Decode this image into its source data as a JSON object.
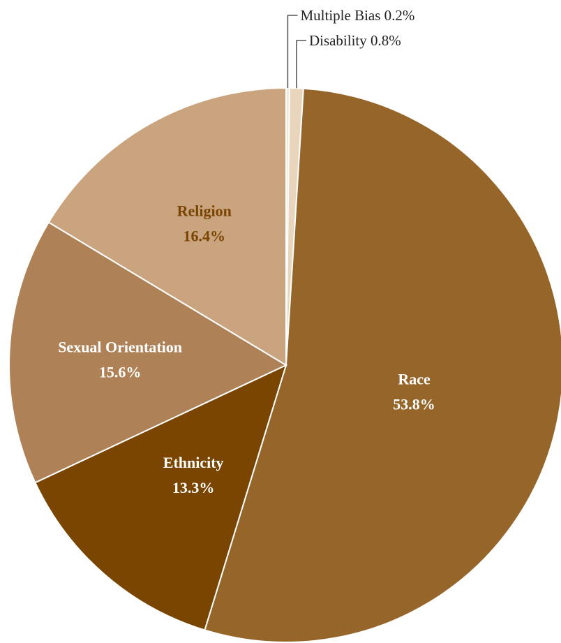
{
  "chart_data": {
    "type": "pie",
    "title": "",
    "slices": [
      {
        "label": "Multiple Bias",
        "value": 0.2,
        "value_label": "0.2%",
        "color": "#f2e6d4",
        "label_style": "callout",
        "label_color": "#222222"
      },
      {
        "label": "Disability",
        "value": 0.8,
        "value_label": "0.8%",
        "color": "#e8d5bb",
        "label_style": "callout",
        "label_color": "#222222"
      },
      {
        "label": "Race",
        "value": 53.8,
        "value_label": "53.8%",
        "color": "#95652a",
        "label_style": "inside",
        "label_color": "#ffffff"
      },
      {
        "label": "Ethnicity",
        "value": 13.3,
        "value_label": "13.3%",
        "color": "#7a4500",
        "label_style": "inside",
        "label_color": "#ffffff"
      },
      {
        "label": "Sexual Orientation",
        "value": 15.6,
        "value_label": "15.6%",
        "color": "#ae8256",
        "label_style": "inside",
        "label_color": "#ffffff"
      },
      {
        "label": "Religion",
        "value": 16.4,
        "value_label": "16.4%",
        "color": "#c9a47f",
        "label_style": "inside",
        "label_color": "#7a4500"
      }
    ],
    "start_direction": "top",
    "direction": "clockwise",
    "legend": "none"
  }
}
